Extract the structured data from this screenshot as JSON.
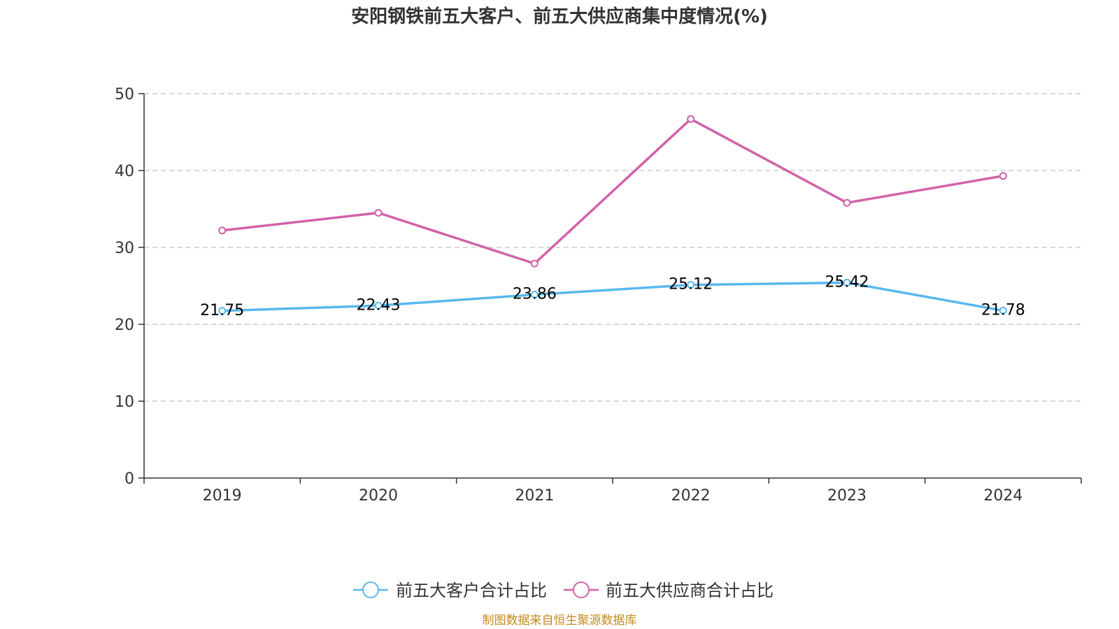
{
  "chart_data": {
    "type": "line",
    "title": "安阳钢铁前五大客户、前五大供应商集中度情况(%)",
    "categories": [
      "2019",
      "2020",
      "2021",
      "2022",
      "2023",
      "2024"
    ],
    "ylim": [
      0,
      50
    ],
    "yticks": [
      0,
      10,
      20,
      30,
      40,
      50
    ],
    "grid": true,
    "legend_position": "bottom-center",
    "series": [
      {
        "name": "前五大客户合计占比",
        "color": "#5ab8ee",
        "values": [
          21.75,
          22.43,
          23.86,
          25.12,
          25.42,
          21.78
        ],
        "labels": [
          "21.75",
          "22.43",
          "23.86",
          "25.12",
          "25.42",
          "21.78"
        ]
      },
      {
        "name": "前五大供应商合计占比",
        "color": "#d262a8",
        "values": [
          32.2,
          34.5,
          27.9,
          46.7,
          35.8,
          39.3
        ]
      }
    ]
  },
  "source": {
    "text": "制图数据来自恒生聚源数据库",
    "color": "#c48a1c"
  }
}
